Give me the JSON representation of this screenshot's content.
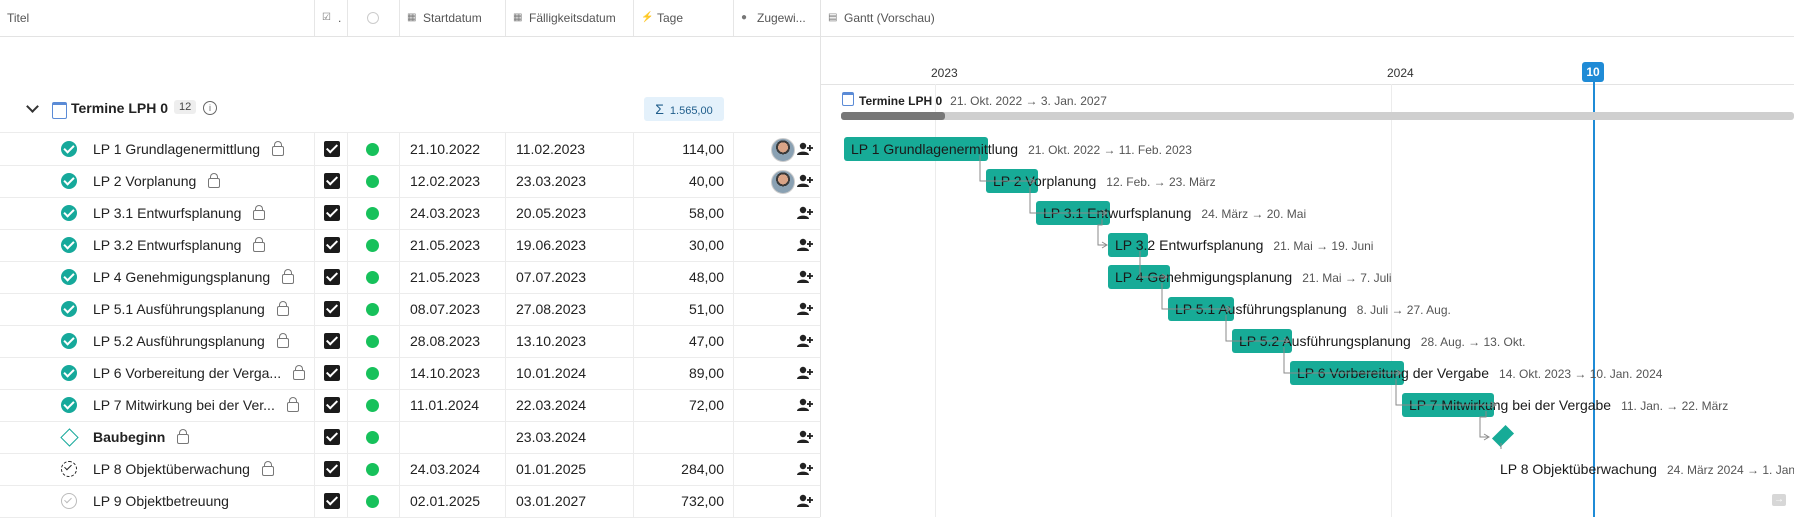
{
  "header": {
    "title_col": "Titel",
    "check_col": ".",
    "start_col": "Startdatum",
    "due_col": "Fälligkeitsdatum",
    "days_col": "Tage",
    "assign_col": "Zugewi...",
    "gantt_col": "Gantt (Vorschau)"
  },
  "group": {
    "name": "Termine LPH 0",
    "count": "12",
    "sum": "1.565,00",
    "gantt_label": "Termine LPH 0",
    "gantt_dates": "21. Okt. 2022 → 3. Jan. 2027"
  },
  "timeline": {
    "year1": "2023",
    "year2": "2024",
    "today": "10"
  },
  "rows": [
    {
      "title": "LP 1 Grundlagenermittlung",
      "status": "done",
      "lock": true,
      "start": "21.10.2022",
      "due": "11.02.2023",
      "days": "114,00",
      "avatar": true,
      "gantt_dates": "21. Okt. 2022 → 11. Feb. 2023"
    },
    {
      "title": "LP 2 Vorplanung",
      "status": "done",
      "lock": true,
      "start": "12.02.2023",
      "due": "23.03.2023",
      "days": "40,00",
      "avatar": true,
      "gantt_dates": "12. Feb. → 23. März"
    },
    {
      "title": "LP 3.1 Entwurfsplanung",
      "status": "done",
      "lock": true,
      "start": "24.03.2023",
      "due": "20.05.2023",
      "days": "58,00",
      "avatar": false,
      "gantt_dates": "24. März → 20. Mai"
    },
    {
      "title": "LP 3.2 Entwurfsplanung",
      "status": "done",
      "lock": true,
      "start": "21.05.2023",
      "due": "19.06.2023",
      "days": "30,00",
      "avatar": false,
      "gantt_dates": "21. Mai → 19. Juni"
    },
    {
      "title": "LP 4 Genehmigungsplanung",
      "status": "done",
      "lock": true,
      "start": "21.05.2023",
      "due": "07.07.2023",
      "days": "48,00",
      "avatar": false,
      "gantt_dates": "21. Mai → 7. Juli"
    },
    {
      "title": "LP 5.1 Ausführungsplanung",
      "status": "done",
      "lock": true,
      "start": "08.07.2023",
      "due": "27.08.2023",
      "days": "51,00",
      "avatar": false,
      "gantt_dates": "8. Juli → 27. Aug."
    },
    {
      "title": "LP 5.2 Ausführungsplanung",
      "status": "done",
      "lock": true,
      "start": "28.08.2023",
      "due": "13.10.2023",
      "days": "47,00",
      "avatar": false,
      "gantt_dates": "28. Aug. → 13. Okt."
    },
    {
      "title": "LP 6 Vorbereitung der Verga...",
      "gantt_title": "LP 6 Vorbereitung der Vergabe",
      "status": "done",
      "lock": true,
      "start": "14.10.2023",
      "due": "10.01.2024",
      "days": "89,00",
      "avatar": false,
      "gantt_dates": "14. Okt. 2023 → 10. Jan. 2024"
    },
    {
      "title": "LP 7 Mitwirkung bei der Ver...",
      "gantt_title": "LP 7 Mitwirkung bei der Vergabe",
      "status": "done",
      "lock": true,
      "start": "11.01.2024",
      "due": "22.03.2024",
      "days": "72,00",
      "avatar": false,
      "gantt_dates": "11. Jan. → 22. März"
    },
    {
      "title": "Baubeginn",
      "status": "diamond",
      "lock": true,
      "bold": true,
      "start": "",
      "due": "23.03.2024",
      "days": "",
      "avatar": false,
      "gantt_dates": ""
    },
    {
      "title": "LP 8 Objektüberwachung",
      "status": "progress",
      "lock": true,
      "start": "24.03.2024",
      "due": "01.01.2025",
      "days": "284,00",
      "avatar": false,
      "gantt_dates": "24. März 2024 → 1. Jan."
    },
    {
      "title": "LP 9 Objektbetreuung",
      "status": "empty",
      "lock": false,
      "start": "02.01.2025",
      "due": "03.01.2027",
      "days": "732,00",
      "avatar": false,
      "gantt_dates": ""
    }
  ],
  "colors": {
    "bar": "#17ab97",
    "today": "#1f8bd6",
    "dot": "#17c15b"
  }
}
